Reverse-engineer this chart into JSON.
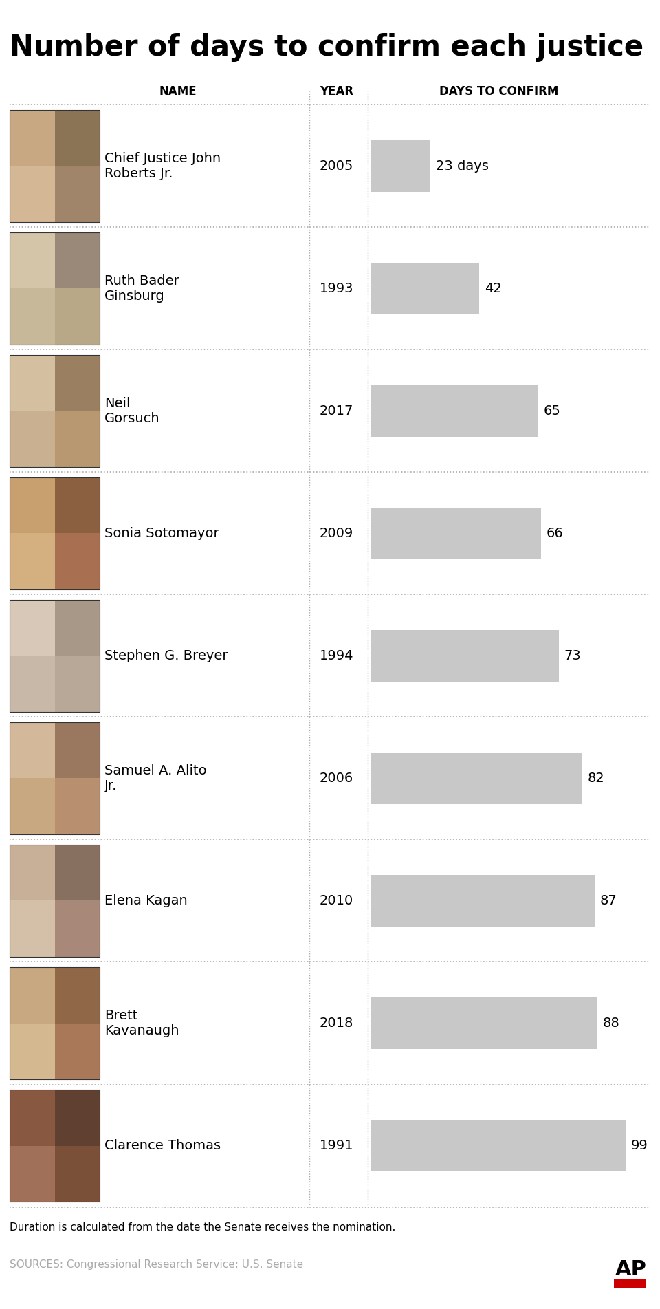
{
  "title": "Number of days to confirm each justice",
  "col_name": "NAME",
  "col_year": "YEAR",
  "col_days": "DAYS TO CONFIRM",
  "justices": [
    {
      "name": "Chief Justice John\nRoberts Jr.",
      "year": 2005,
      "days": 23,
      "label": "23 days",
      "photo_color": [
        "#c8a882",
        "#8b7355",
        "#d4b896",
        "#a0856a"
      ]
    },
    {
      "name": "Ruth Bader\nGinsburg",
      "year": 1993,
      "days": 42,
      "label": "42",
      "photo_color": [
        "#d4c4a8",
        "#9a8878",
        "#c8b89a",
        "#b8a888"
      ]
    },
    {
      "name": "Neil\nGorsuch",
      "year": 2017,
      "days": 65,
      "label": "65",
      "photo_color": [
        "#d4c0a0",
        "#9a8060",
        "#c8b090",
        "#b89870"
      ]
    },
    {
      "name": "Sonia Sotomayor",
      "year": 2009,
      "days": 66,
      "label": "66",
      "photo_color": [
        "#c8a070",
        "#8b6040",
        "#d4b080",
        "#a87050"
      ]
    },
    {
      "name": "Stephen G. Breyer",
      "year": 1994,
      "days": 73,
      "label": "73",
      "photo_color": [
        "#d8c8b8",
        "#a89888",
        "#c8b8a8",
        "#b8a898"
      ]
    },
    {
      "name": "Samuel A. Alito\nJr.",
      "year": 2006,
      "days": 82,
      "label": "82",
      "photo_color": [
        "#d4b89a",
        "#9a7860",
        "#c8a880",
        "#b89070"
      ]
    },
    {
      "name": "Elena Kagan",
      "year": 2010,
      "days": 87,
      "label": "87",
      "photo_color": [
        "#c8b098",
        "#887060",
        "#d4c0a8",
        "#a88878"
      ]
    },
    {
      "name": "Brett\nKavanaugh",
      "year": 2018,
      "days": 88,
      "label": "88",
      "photo_color": [
        "#c8a880",
        "#906848",
        "#d4b890",
        "#a87858"
      ]
    },
    {
      "name": "Clarence Thomas",
      "year": 1991,
      "days": 99,
      "label": "99",
      "photo_color": [
        "#885840",
        "#604030",
        "#a07058",
        "#7a5038"
      ]
    }
  ],
  "bar_color": "#c8c8c8",
  "bar_max_days": 99,
  "footnote": "Duration is calculated from the date the Senate receives the nomination.",
  "sources": "SOURCES: Congressional Research Service; U.S. Senate",
  "ap_logo": "AP",
  "background_color": "#ffffff",
  "title_fontsize": 30,
  "header_fontsize": 12,
  "name_fontsize": 14,
  "year_fontsize": 14,
  "days_label_fontsize": 14,
  "footnote_fontsize": 11,
  "sources_fontsize": 11,
  "dotted_line_color": "#aaaaaa",
  "text_color": "#000000",
  "sources_color": "#aaaaaa"
}
